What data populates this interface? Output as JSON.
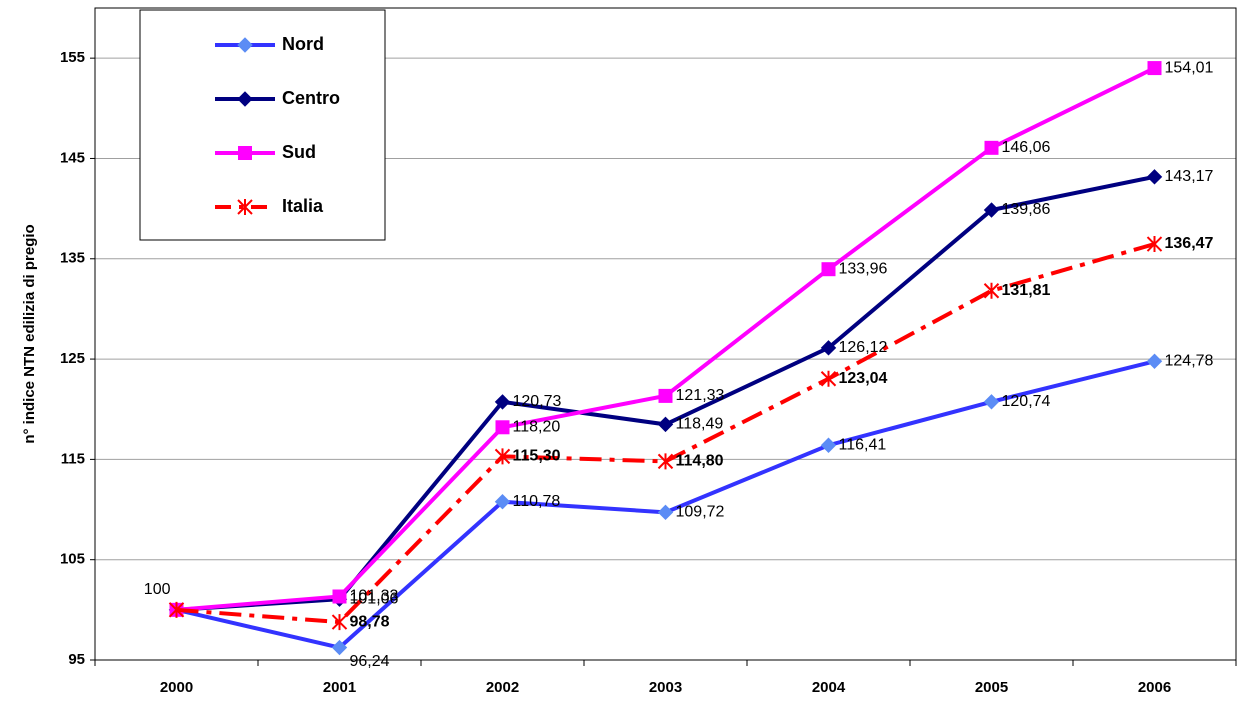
{
  "chart_data": {
    "type": "line",
    "y_label": "n° indice NTN edilizia di pregio",
    "categories": [
      "2000",
      "2001",
      "2002",
      "2003",
      "2004",
      "2005",
      "2006"
    ],
    "ylim": [
      95,
      160
    ],
    "yticks": [
      95,
      105,
      115,
      125,
      135,
      145,
      155
    ],
    "grid": true,
    "legend": "top-left",
    "series": [
      {
        "name": "Nord",
        "color": "#3333ff",
        "marker_color": "#5b8cf5",
        "marker": "diamond",
        "line_style": "solid",
        "values": [
          100,
          96.24,
          110.78,
          109.72,
          116.41,
          120.74,
          124.78
        ],
        "value_labels": [
          "100",
          "96,24",
          "110,78",
          "109,72",
          "116,41",
          "120,74",
          "124,78"
        ]
      },
      {
        "name": "Centro",
        "color": "#000080",
        "marker_color": "#000080",
        "marker": "diamond",
        "line_style": "solid",
        "values": [
          100,
          101.06,
          120.73,
          118.49,
          126.12,
          139.86,
          143.17
        ],
        "value_labels": [
          null,
          "101,06",
          "120,73",
          "118,49",
          "126,12",
          "139,86",
          "143,17"
        ]
      },
      {
        "name": "Sud",
        "color": "#ff00ff",
        "marker_color": "#ff00ff",
        "marker": "square",
        "line_style": "solid",
        "values": [
          100,
          101.33,
          118.2,
          121.33,
          133.96,
          146.06,
          154.01
        ],
        "value_labels": [
          null,
          "101,33",
          "118,20",
          "121,33",
          "133,96",
          "146,06",
          "154,01"
        ]
      },
      {
        "name": "Italia",
        "color": "#ff0000",
        "marker_color": "#ff0000",
        "marker": "asterisk",
        "line_style": "dash-dot",
        "bold_labels": true,
        "values": [
          100,
          98.78,
          115.3,
          114.8,
          123.04,
          131.81,
          136.47
        ],
        "value_labels": [
          null,
          "98,78",
          "115,30",
          "114,80",
          "123,04",
          "131,81",
          "136,47"
        ]
      }
    ]
  }
}
